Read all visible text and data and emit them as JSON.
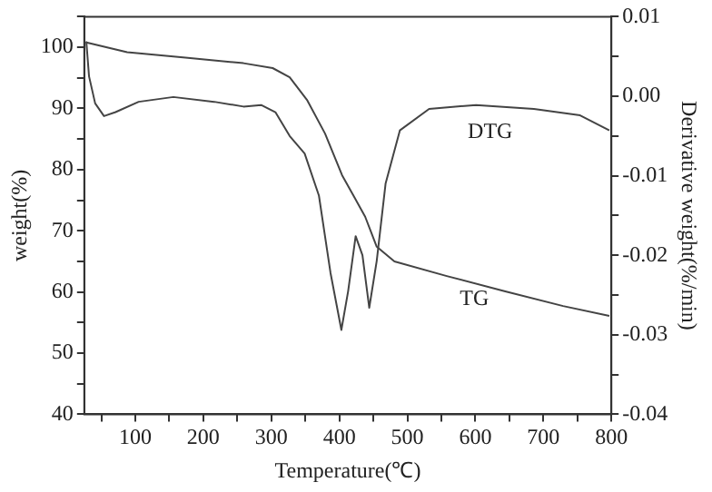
{
  "chart_data": {
    "type": "line",
    "xlabel": "Temperature(℃)",
    "ylabel": "weight(%)",
    "y2label": "Derivative weight(%/min)",
    "xlim": [
      25,
      800
    ],
    "xticks": [
      {
        "value": 50,
        "label": null
      },
      100,
      {
        "value": 150,
        "label": null
      },
      200,
      {
        "value": 250,
        "label": null
      },
      300,
      {
        "value": 350,
        "label": null
      },
      400,
      {
        "value": 450,
        "label": null
      },
      500,
      {
        "value": 550,
        "label": null
      },
      600,
      {
        "value": 650,
        "label": null
      },
      700,
      {
        "value": 750,
        "label": null
      },
      800
    ],
    "ylim": [
      40,
      105
    ],
    "yticks": [
      40,
      {
        "value": 45,
        "label": null
      },
      50,
      {
        "value": 55,
        "label": null
      },
      60,
      {
        "value": 65,
        "label": null
      },
      70,
      {
        "value": 75,
        "label": null
      },
      80,
      {
        "value": 85,
        "label": null
      },
      90,
      {
        "value": 95,
        "label": null
      },
      100,
      {
        "value": 105,
        "label": null
      }
    ],
    "y2lim": [
      -0.04,
      0.01
    ],
    "y2ticks": [
      {
        "value": -0.04,
        "label": "-0.04"
      },
      {
        "value": -0.035,
        "label": null
      },
      {
        "value": -0.03,
        "label": "-0.03"
      },
      {
        "value": -0.025,
        "label": null
      },
      {
        "value": -0.02,
        "label": "-0.02"
      },
      {
        "value": -0.015,
        "label": null
      },
      {
        "value": -0.01,
        "label": "-0.01"
      },
      {
        "value": -0.005,
        "label": null
      },
      {
        "value": 0,
        "label": "0.00"
      },
      {
        "value": 0.005,
        "label": null
      },
      {
        "value": 0.01,
        "label": "0.01"
      }
    ],
    "grid": false,
    "legend": false,
    "marker": "none",
    "line_style": "solid",
    "series": [
      {
        "color": "#444444",
        "x": [
          28,
          88,
          174,
          259,
          302,
          327,
          353,
          379,
          404,
          421,
          438,
          455,
          481,
          558,
          644,
          729,
          797
        ],
        "values": [
          100.8,
          99.2,
          98.3,
          97.4,
          96.6,
          95.1,
          91.3,
          85.9,
          79.1,
          75.7,
          72.3,
          67.4,
          65,
          62.6,
          60.1,
          57.7,
          56.1
        ]
      },
      {
        "color": "#444444",
        "axis": "y2",
        "x": [
          28,
          32,
          41,
          54,
          71,
          105,
          156,
          216,
          259,
          285,
          306,
          327,
          349,
          370,
          387,
          403,
          413,
          424,
          434,
          444,
          455,
          468,
          489,
          532,
          601,
          686,
          754,
          797
        ],
        "values": [
          0.0069,
          0.0025,
          -0.0009,
          -0.0025,
          -0.002,
          -0.0007,
          -0.0001,
          -0.0007,
          -0.0013,
          -0.0011,
          -0.002,
          -0.005,
          -0.0072,
          -0.0125,
          -0.0222,
          -0.0294,
          -0.0245,
          -0.0176,
          -0.02,
          -0.0266,
          -0.0207,
          -0.011,
          -0.0043,
          -0.0016,
          -0.0011,
          -0.0016,
          -0.0024,
          -0.0043
        ]
      }
    ],
    "annotations": [
      "DTG",
      "TG"
    ]
  }
}
